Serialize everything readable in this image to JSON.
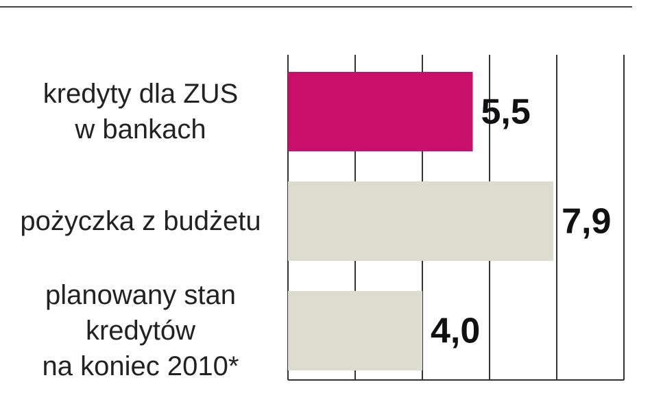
{
  "chart_data": {
    "type": "bar",
    "orientation": "horizontal",
    "categories": [
      "kredyty dla ZUS\nw bankach",
      "pożyczka z budżetu",
      "planowany stan\nkredytów\nna koniec 2010*"
    ],
    "values": [
      5.5,
      7.9,
      4.0
    ],
    "value_labels": [
      "5,5",
      "7,9",
      "4,0"
    ],
    "colors": [
      "#c8106a",
      "#dcdccf",
      "#dcdccf"
    ],
    "xlim": [
      0,
      10
    ],
    "xticks": [
      0,
      2,
      4,
      6,
      8,
      10
    ],
    "grid": true
  }
}
